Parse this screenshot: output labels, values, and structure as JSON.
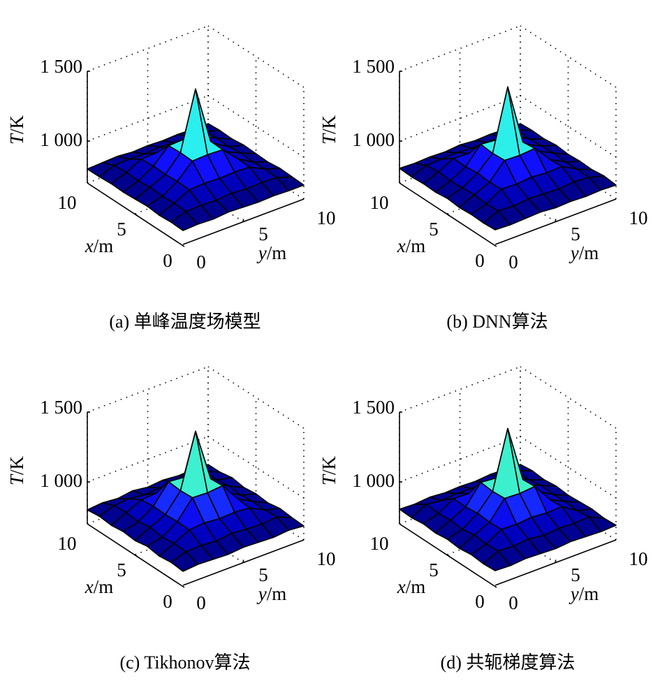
{
  "colors": {
    "edge": "#000000",
    "background": "#ffffff"
  },
  "colormap": [
    [
      800,
      "#00007a"
    ],
    [
      880,
      "#0000c0"
    ],
    [
      960,
      "#1010ff"
    ],
    [
      1000,
      "#2060ff"
    ],
    [
      1110,
      "#22eeff"
    ],
    [
      1140,
      "#44f0c0"
    ],
    [
      1180,
      "#aaff55"
    ],
    [
      1250,
      "#ffff22"
    ]
  ],
  "chart_data": [
    {
      "type": "surface",
      "title": "(a) 单峰温度场模型",
      "x": [
        0,
        1.25,
        2.5,
        3.75,
        5,
        6.25,
        7.5,
        8.75,
        10
      ],
      "y": [
        0,
        1.25,
        2.5,
        3.75,
        5,
        6.25,
        7.5,
        8.75,
        10
      ],
      "zlim": [
        700,
        1500
      ],
      "zticks": [
        1000,
        1500
      ],
      "ztick_labels": [
        "1 000",
        "1 500"
      ],
      "xtick_labels": [
        "0",
        "5",
        "10"
      ],
      "ytick_labels": [
        "0",
        "5",
        "10"
      ],
      "zlabel_var": "T",
      "zlabel_unit": "/K",
      "xlabel_var": "x",
      "xlabel_unit": "/m",
      "ylabel_var": "y",
      "ylabel_unit": "/m",
      "z": [
        [
          800,
          805,
          800,
          810,
          805,
          800,
          805,
          800,
          800
        ],
        [
          805,
          840,
          845,
          840,
          850,
          840,
          845,
          840,
          805
        ],
        [
          800,
          845,
          900,
          905,
          900,
          905,
          900,
          845,
          810
        ],
        [
          810,
          840,
          905,
          1010,
          1015,
          1010,
          905,
          840,
          800
        ],
        [
          805,
          850,
          900,
          1015,
          1430,
          1015,
          900,
          850,
          805
        ],
        [
          800,
          840,
          905,
          1010,
          1015,
          1010,
          905,
          840,
          810
        ],
        [
          805,
          845,
          900,
          905,
          900,
          905,
          900,
          845,
          800
        ],
        [
          800,
          840,
          845,
          840,
          850,
          840,
          845,
          840,
          805
        ],
        [
          800,
          805,
          810,
          800,
          805,
          800,
          805,
          800,
          800
        ]
      ]
    },
    {
      "type": "surface",
      "title": "(b) DNN算法",
      "x": [
        0,
        1.25,
        2.5,
        3.75,
        5,
        6.25,
        7.5,
        8.75,
        10
      ],
      "y": [
        0,
        1.25,
        2.5,
        3.75,
        5,
        6.25,
        7.5,
        8.75,
        10
      ],
      "zlim": [
        700,
        1500
      ],
      "zticks": [
        1000,
        1500
      ],
      "ztick_labels": [
        "1 000",
        "1 500"
      ],
      "xtick_labels": [
        "0",
        "5",
        "10"
      ],
      "ytick_labels": [
        "0",
        "5",
        "10"
      ],
      "zlabel_var": "T",
      "zlabel_unit": "/K",
      "xlabel_var": "x",
      "xlabel_unit": "/m",
      "ylabel_var": "y",
      "ylabel_unit": "/m",
      "z": [
        [
          805,
          800,
          805,
          810,
          800,
          805,
          800,
          805,
          800
        ],
        [
          800,
          845,
          840,
          850,
          845,
          840,
          850,
          840,
          810
        ],
        [
          805,
          840,
          905,
          900,
          910,
          900,
          905,
          845,
          800
        ],
        [
          800,
          850,
          900,
          1015,
          1010,
          1020,
          900,
          840,
          805
        ],
        [
          810,
          845,
          910,
          1010,
          1445,
          1010,
          905,
          850,
          800
        ],
        [
          800,
          840,
          900,
          1020,
          1010,
          1015,
          900,
          845,
          810
        ],
        [
          805,
          850,
          905,
          900,
          905,
          900,
          910,
          840,
          800
        ],
        [
          800,
          840,
          845,
          850,
          840,
          845,
          840,
          850,
          805
        ],
        [
          805,
          800,
          805,
          800,
          810,
          800,
          805,
          800,
          800
        ]
      ]
    },
    {
      "type": "surface",
      "title": "(c) Tikhonov算法",
      "x": [
        0,
        1.25,
        2.5,
        3.75,
        5,
        6.25,
        7.5,
        8.75,
        10
      ],
      "y": [
        0,
        1.25,
        2.5,
        3.75,
        5,
        6.25,
        7.5,
        8.75,
        10
      ],
      "zlim": [
        700,
        1500
      ],
      "zticks": [
        1000,
        1500
      ],
      "ztick_labels": [
        "1 000",
        "1 500"
      ],
      "xtick_labels": [
        "0",
        "5",
        "10"
      ],
      "ytick_labels": [
        "0",
        "5",
        "10"
      ],
      "zlabel_var": "T",
      "zlabel_unit": "/K",
      "xlabel_var": "x",
      "xlabel_unit": "/m",
      "ylabel_var": "y",
      "ylabel_unit": "/m",
      "z": [
        [
          800,
          810,
          805,
          800,
          810,
          805,
          800,
          810,
          800
        ],
        [
          810,
          845,
          850,
          840,
          855,
          845,
          840,
          850,
          805
        ],
        [
          800,
          850,
          905,
          915,
          905,
          910,
          900,
          845,
          815
        ],
        [
          815,
          840,
          910,
          1040,
          1035,
          1045,
          910,
          850,
          800
        ],
        [
          800,
          855,
          905,
          1035,
          1420,
          1040,
          905,
          840,
          810
        ],
        [
          810,
          840,
          910,
          1045,
          1035,
          1040,
          915,
          850,
          800
        ],
        [
          800,
          850,
          900,
          910,
          905,
          915,
          905,
          840,
          815
        ],
        [
          810,
          845,
          855,
          840,
          850,
          845,
          850,
          845,
          800
        ],
        [
          800,
          810,
          800,
          815,
          800,
          810,
          800,
          805,
          800
        ]
      ]
    },
    {
      "type": "surface",
      "title": "(d) 共轭梯度算法",
      "x": [
        0,
        1.25,
        2.5,
        3.75,
        5,
        6.25,
        7.5,
        8.75,
        10
      ],
      "y": [
        0,
        1.25,
        2.5,
        3.75,
        5,
        6.25,
        7.5,
        8.75,
        10
      ],
      "zlim": [
        700,
        1500
      ],
      "zticks": [
        1000,
        1500
      ],
      "ztick_labels": [
        "1 000",
        "1 500"
      ],
      "xtick_labels": [
        "0",
        "5",
        "10"
      ],
      "ytick_labels": [
        "0",
        "5",
        "10"
      ],
      "zlabel_var": "T",
      "zlabel_unit": "/K",
      "xlabel_var": "x",
      "xlabel_unit": "/m",
      "ylabel_var": "y",
      "ylabel_unit": "/m",
      "z": [
        [
          805,
          800,
          810,
          805,
          800,
          810,
          805,
          800,
          805
        ],
        [
          800,
          850,
          845,
          855,
          840,
          850,
          845,
          850,
          800
        ],
        [
          810,
          845,
          910,
          905,
          915,
          905,
          910,
          840,
          810
        ],
        [
          800,
          855,
          905,
          1035,
          1030,
          1040,
          905,
          850,
          805
        ],
        [
          810,
          840,
          915,
          1030,
          1440,
          1035,
          910,
          845,
          800
        ],
        [
          800,
          850,
          905,
          1040,
          1030,
          1035,
          905,
          855,
          810
        ],
        [
          810,
          845,
          910,
          905,
          915,
          905,
          910,
          840,
          800
        ],
        [
          800,
          855,
          840,
          850,
          845,
          855,
          840,
          850,
          810
        ],
        [
          805,
          800,
          810,
          800,
          805,
          800,
          810,
          805,
          800
        ]
      ]
    }
  ]
}
